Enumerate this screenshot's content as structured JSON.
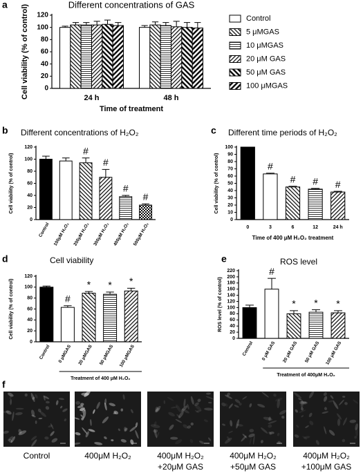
{
  "chart_data": [
    {
      "type": "bar",
      "panel": "a",
      "title": "Different concentrations of GAS",
      "y_label": "Cell viability (% of control)",
      "x_label": "Time of treatment",
      "categories": [
        "24 h",
        "48 h"
      ],
      "series": [
        {
          "name": "Control",
          "color": "#ffffff",
          "pattern": null,
          "values": [
            100,
            100
          ],
          "errors": [
            2,
            3
          ]
        },
        {
          "name": "5 μMGAS",
          "color": "#ffffff",
          "pattern": "diagonal",
          "values": [
            104,
            104
          ],
          "errors": [
            4,
            5
          ]
        },
        {
          "name": "10 μMGAS",
          "color": "#ffffff",
          "pattern": "horizontal",
          "values": [
            104,
            103
          ],
          "errors": [
            4,
            5
          ]
        },
        {
          "name": "20 μM GAS",
          "color": "#ffffff",
          "pattern": "backdiagonal",
          "values": [
            104,
            101
          ],
          "errors": [
            6,
            9
          ]
        },
        {
          "name": "50 μM GAS",
          "color": "#ffffff",
          "pattern": "thick-diagonal",
          "values": [
            105,
            100
          ],
          "errors": [
            7,
            8
          ]
        },
        {
          "name": "100 μMGAS",
          "color": "#ffffff",
          "pattern": "thick-backdiagonal",
          "values": [
            103,
            99
          ],
          "errors": [
            5,
            9
          ]
        }
      ],
      "ylim": [
        0,
        120
      ],
      "yticks": [
        0,
        20,
        40,
        60,
        80,
        100,
        120
      ]
    },
    {
      "type": "bar",
      "panel": "b",
      "title": "Different concentrations of H₂O₂",
      "y_label": "Cell viability (% of control)",
      "categories": [
        "Control",
        "100μM H₂O₂",
        "200μM H₂O₂",
        "300μM H₂O₂",
        "400μM H₂O₂",
        "500μM H₂O₂"
      ],
      "values": [
        100,
        97,
        94,
        70,
        38,
        24
      ],
      "errors": [
        5,
        5,
        8,
        13,
        2,
        2
      ],
      "annotations": [
        null,
        null,
        "#",
        "#",
        "#",
        "#"
      ],
      "colors": [
        "#000000",
        "#ffffff",
        "#ffffff",
        "#ffffff",
        "#ffffff",
        "#ffffff"
      ],
      "patterns": [
        null,
        null,
        "diagonal",
        "backdiagonal",
        "horizontal",
        "checker"
      ],
      "ylim": [
        0,
        120
      ],
      "yticks": [
        0,
        20,
        40,
        60,
        80,
        100,
        120
      ]
    },
    {
      "type": "bar",
      "panel": "c",
      "title": "Different time periods of H₂O₂",
      "y_label": "Cell viability (% of control)",
      "x_label": "Time of 400 μM H₂O₂ treatment",
      "categories": [
        "0",
        "3",
        "6",
        "12",
        "24 h"
      ],
      "values": [
        100,
        63,
        45,
        42,
        38
      ],
      "errors": [
        0,
        1,
        1,
        1,
        1
      ],
      "annotations": [
        null,
        "#",
        "#",
        "#",
        "#"
      ],
      "colors": [
        "#000000",
        "#ffffff",
        "#ffffff",
        "#ffffff",
        "#ffffff"
      ],
      "patterns": [
        null,
        null,
        "diagonal",
        "horizontal",
        "backdiagonal"
      ],
      "ylim": [
        0,
        100
      ],
      "yticks": [
        0,
        10,
        20,
        30,
        40,
        50,
        60,
        70,
        80,
        90,
        100
      ]
    },
    {
      "type": "bar",
      "panel": "d",
      "title": "Cell viability",
      "y_label": "Cell viability (% of control)",
      "group_label": "Treatment of 400 μM H₂O₂",
      "categories": [
        "Control",
        "0 μMGAS",
        "20 μMGAS",
        "50 μMGAS",
        "100 μMGAS"
      ],
      "values": [
        100,
        63,
        89,
        87,
        93
      ],
      "errors": [
        2,
        3,
        3,
        4,
        5
      ],
      "annotations": [
        null,
        "#",
        "*",
        "*",
        "*"
      ],
      "colors": [
        "#000000",
        "#ffffff",
        "#ffffff",
        "#ffffff",
        "#ffffff"
      ],
      "patterns": [
        null,
        null,
        "diagonal",
        "horizontal",
        "backdiagonal"
      ],
      "ylim": [
        0,
        120
      ],
      "yticks": [
        0,
        20,
        40,
        60,
        80,
        100,
        120
      ]
    },
    {
      "type": "bar",
      "panel": "e",
      "title": "ROS level",
      "y_label": "ROS level (% of control)",
      "group_label": "Treatment of 400μM H₂O₂",
      "categories": [
        "Control",
        "0 μM GAS",
        "20 μM GAS",
        "50 μM GAS",
        "100 μM GAS"
      ],
      "values": [
        100,
        160,
        80,
        85,
        83
      ],
      "errors": [
        8,
        35,
        10,
        8,
        7
      ],
      "annotations": [
        null,
        "#",
        "*",
        "*",
        "*"
      ],
      "colors": [
        "#000000",
        "#ffffff",
        "#ffffff",
        "#ffffff",
        "#ffffff"
      ],
      "patterns": [
        null,
        null,
        "diagonal",
        "horizontal",
        "backdiagonal"
      ],
      "ylim": [
        0,
        220
      ],
      "yticks": [
        0,
        20,
        40,
        60,
        80,
        100,
        120,
        140,
        160,
        180,
        200,
        220
      ]
    }
  ],
  "images": {
    "panel": "f",
    "captions": [
      [
        "Control"
      ],
      [
        "400μM H₂O₂"
      ],
      [
        "400μM H₂O₂",
        "+20μM GAS"
      ],
      [
        "400μM H₂O₂",
        "+50μM GAS"
      ],
      [
        "400μM H₂O₂",
        "+100μM GAS"
      ]
    ]
  }
}
